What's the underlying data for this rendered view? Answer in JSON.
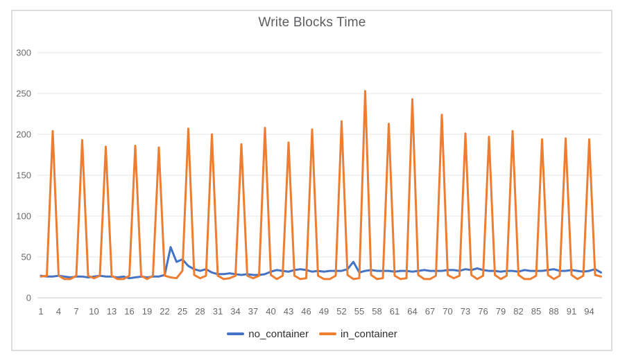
{
  "window": {
    "background": "#ffffff",
    "card_border_color": "#dcdcdc",
    "grid_color": "#e4e4e4",
    "zero_line_color": "#cbcbcb",
    "tick_label_color": "#696969",
    "title_color": "#5b5d60"
  },
  "chart_data": {
    "type": "line",
    "title": "Write Blocks Time",
    "xlabel": "",
    "ylabel": "",
    "xlim": [
      1,
      96
    ],
    "ylim": [
      0,
      300
    ],
    "grid": "horizontal",
    "legend_position": "bottom-center",
    "y_ticks": [
      0,
      50,
      100,
      150,
      200,
      250,
      300
    ],
    "x_tick_labels": [
      1,
      4,
      7,
      10,
      13,
      16,
      19,
      22,
      25,
      28,
      31,
      34,
      37,
      40,
      43,
      46,
      49,
      52,
      55,
      58,
      61,
      64,
      67,
      70,
      73,
      76,
      79,
      82,
      85,
      88,
      91,
      94
    ],
    "x": [
      1,
      2,
      3,
      4,
      5,
      6,
      7,
      8,
      9,
      10,
      11,
      12,
      13,
      14,
      15,
      16,
      17,
      18,
      19,
      20,
      21,
      22,
      23,
      24,
      25,
      26,
      27,
      28,
      29,
      30,
      31,
      32,
      33,
      34,
      35,
      36,
      37,
      38,
      39,
      40,
      41,
      42,
      43,
      44,
      45,
      46,
      47,
      48,
      49,
      50,
      51,
      52,
      53,
      54,
      55,
      56,
      57,
      58,
      59,
      60,
      61,
      62,
      63,
      64,
      65,
      66,
      67,
      68,
      69,
      70,
      71,
      72,
      73,
      74,
      75,
      76,
      77,
      78,
      79,
      80,
      81,
      82,
      83,
      84,
      85,
      86,
      87,
      88,
      89,
      90,
      91,
      92,
      93,
      94,
      95,
      96
    ],
    "series": [
      {
        "name": "no_container",
        "color": "#4472c4",
        "values": [
          27,
          26,
          26,
          27,
          26,
          25,
          26,
          26,
          25,
          26,
          27,
          26,
          26,
          25,
          26,
          24,
          25,
          26,
          25,
          26,
          26,
          28,
          62,
          44,
          47,
          39,
          35,
          33,
          35,
          31,
          29,
          29,
          30,
          29,
          28,
          29,
          28,
          28,
          29,
          32,
          34,
          33,
          32,
          34,
          35,
          34,
          32,
          33,
          32,
          33,
          33,
          33,
          35,
          44,
          31,
          33,
          34,
          33,
          33,
          33,
          32,
          33,
          33,
          32,
          33,
          34,
          33,
          33,
          33,
          34,
          34,
          33,
          35,
          34,
          36,
          34,
          33,
          33,
          32,
          33,
          33,
          32,
          34,
          33,
          33,
          33,
          34,
          35,
          33,
          33,
          34,
          33,
          32,
          33,
          35,
          31
        ]
      },
      {
        "name": "in_container",
        "color": "#ed7d31",
        "values": [
          26,
          27,
          204,
          27,
          23,
          23,
          27,
          193,
          27,
          24,
          27,
          185,
          27,
          23,
          23,
          27,
          186,
          27,
          23,
          27,
          184,
          27,
          25,
          24,
          33,
          207,
          28,
          24,
          27,
          200,
          27,
          23,
          24,
          27,
          188,
          27,
          24,
          27,
          208,
          28,
          23,
          27,
          190,
          27,
          23,
          24,
          206,
          27,
          23,
          23,
          27,
          216,
          28,
          23,
          24,
          253,
          28,
          23,
          24,
          213,
          27,
          23,
          24,
          243,
          28,
          23,
          23,
          27,
          224,
          28,
          24,
          27,
          201,
          28,
          23,
          27,
          197,
          28,
          23,
          27,
          204,
          28,
          23,
          23,
          27,
          194,
          28,
          23,
          27,
          195,
          28,
          23,
          27,
          194,
          28,
          26
        ]
      }
    ],
    "spike_peaks": {
      "x_positions": [
        3,
        8,
        12,
        17,
        21,
        26,
        30,
        35,
        39,
        43,
        47,
        52,
        56,
        60,
        64,
        69,
        73,
        77,
        81,
        86,
        90,
        94
      ],
      "values": [
        204,
        193,
        185,
        186,
        184,
        207,
        200,
        188,
        208,
        190,
        206,
        216,
        253,
        213,
        243,
        224,
        201,
        197,
        204,
        194,
        195,
        194
      ]
    }
  }
}
